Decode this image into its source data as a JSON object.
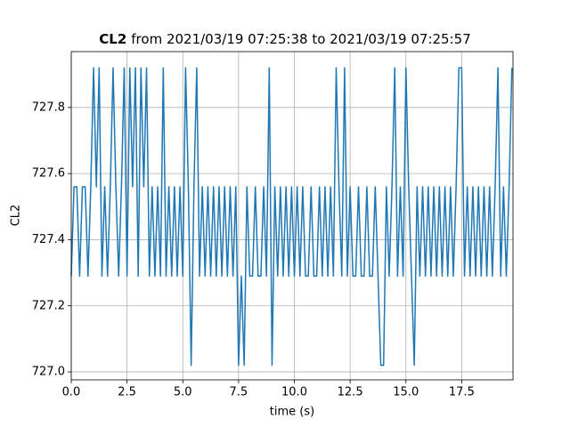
{
  "chart_data": {
    "type": "line",
    "title_bold": "CL2",
    "title": "from 2021/03/19 07:25:38 to 2021/03/19 07:25:57",
    "xlabel": "time (s)",
    "ylabel": "CL2",
    "color": "#1f77b4",
    "grid": true,
    "xlim": [
      0,
      19.8
    ],
    "ylim": [
      726.976,
      727.969
    ],
    "xticks": [
      {
        "value": 0,
        "label": "0.0"
      },
      2.5,
      {
        "value": 5,
        "label": "5.0"
      },
      7.5,
      {
        "value": 10,
        "label": "10.0"
      },
      12.5,
      {
        "value": 15,
        "label": "15.0"
      },
      17.5
    ],
    "yticks": [
      {
        "value": 727,
        "label": "727.0"
      },
      727.2,
      727.4,
      727.6,
      727.8
    ],
    "x": [
      0,
      0.125,
      0.25,
      0.375,
      0.5,
      0.625,
      0.75,
      0.875,
      1,
      1.125,
      1.25,
      1.375,
      1.5,
      1.625,
      1.75,
      1.875,
      2,
      2.125,
      2.25,
      2.375,
      2.5,
      2.625,
      2.75,
      2.875,
      3,
      3.125,
      3.25,
      3.375,
      3.5,
      3.625,
      3.75,
      3.875,
      4,
      4.125,
      4.25,
      4.375,
      4.5,
      4.625,
      4.75,
      4.875,
      5,
      5.125,
      5.25,
      5.375,
      5.5,
      5.625,
      5.75,
      5.875,
      6,
      6.125,
      6.25,
      6.375,
      6.5,
      6.625,
      6.75,
      6.875,
      7,
      7.125,
      7.25,
      7.375,
      7.5,
      7.625,
      7.75,
      7.875,
      8,
      8.125,
      8.25,
      8.375,
      8.5,
      8.625,
      8.75,
      8.875,
      9,
      9.125,
      9.25,
      9.375,
      9.5,
      9.625,
      9.75,
      9.875,
      10,
      10.125,
      10.25,
      10.375,
      10.5,
      10.625,
      10.75,
      10.875,
      11,
      11.125,
      11.25,
      11.375,
      11.5,
      11.625,
      11.75,
      11.875,
      12,
      12.125,
      12.25,
      12.375,
      12.5,
      12.625,
      12.75,
      12.875,
      13,
      13.125,
      13.25,
      13.375,
      13.5,
      13.625,
      13.75,
      13.875,
      14,
      14.125,
      14.25,
      14.375,
      14.5,
      14.625,
      14.75,
      14.875,
      15,
      15.125,
      15.25,
      15.375,
      15.5,
      15.625,
      15.75,
      15.875,
      16,
      16.125,
      16.25,
      16.375,
      16.5,
      16.625,
      16.75,
      16.875,
      17,
      17.125,
      17.25,
      17.375,
      17.5,
      17.625,
      17.75,
      17.875,
      18,
      18.125,
      18.25,
      18.375,
      18.5,
      18.625,
      18.75,
      18.875,
      19,
      19.125,
      19.25,
      19.375,
      19.5,
      19.625,
      19.75
    ],
    "values": [
      727.29,
      727.56,
      727.56,
      727.29,
      727.56,
      727.56,
      727.29,
      727.56,
      727.92,
      727.56,
      727.92,
      727.29,
      727.56,
      727.29,
      727.56,
      727.92,
      727.56,
      727.29,
      727.56,
      727.92,
      727.29,
      727.92,
      727.56,
      727.92,
      727.29,
      727.92,
      727.56,
      727.92,
      727.29,
      727.56,
      727.29,
      727.56,
      727.29,
      727.92,
      727.29,
      727.56,
      727.29,
      727.56,
      727.29,
      727.56,
      727.29,
      727.92,
      727.56,
      727.02,
      727.56,
      727.92,
      727.29,
      727.56,
      727.29,
      727.56,
      727.29,
      727.56,
      727.29,
      727.56,
      727.29,
      727.56,
      727.29,
      727.56,
      727.29,
      727.56,
      727.02,
      727.29,
      727.02,
      727.56,
      727.29,
      727.29,
      727.56,
      727.29,
      727.29,
      727.56,
      727.29,
      727.92,
      727.02,
      727.56,
      727.29,
      727.56,
      727.29,
      727.56,
      727.29,
      727.56,
      727.29,
      727.56,
      727.29,
      727.56,
      727.29,
      727.29,
      727.56,
      727.29,
      727.29,
      727.56,
      727.29,
      727.56,
      727.29,
      727.56,
      727.29,
      727.92,
      727.56,
      727.29,
      727.92,
      727.29,
      727.56,
      727.29,
      727.29,
      727.56,
      727.29,
      727.29,
      727.56,
      727.29,
      727.29,
      727.56,
      727.29,
      727.02,
      727.02,
      727.56,
      727.29,
      727.56,
      727.92,
      727.29,
      727.56,
      727.29,
      727.92,
      727.56,
      727.29,
      727.02,
      727.56,
      727.29,
      727.56,
      727.29,
      727.56,
      727.29,
      727.56,
      727.29,
      727.56,
      727.29,
      727.56,
      727.29,
      727.56,
      727.29,
      727.56,
      727.92,
      727.92,
      727.29,
      727.56,
      727.29,
      727.56,
      727.29,
      727.56,
      727.29,
      727.56,
      727.29,
      727.56,
      727.29,
      727.56,
      727.92,
      727.29,
      727.56,
      727.29,
      727.56,
      727.92
    ]
  }
}
